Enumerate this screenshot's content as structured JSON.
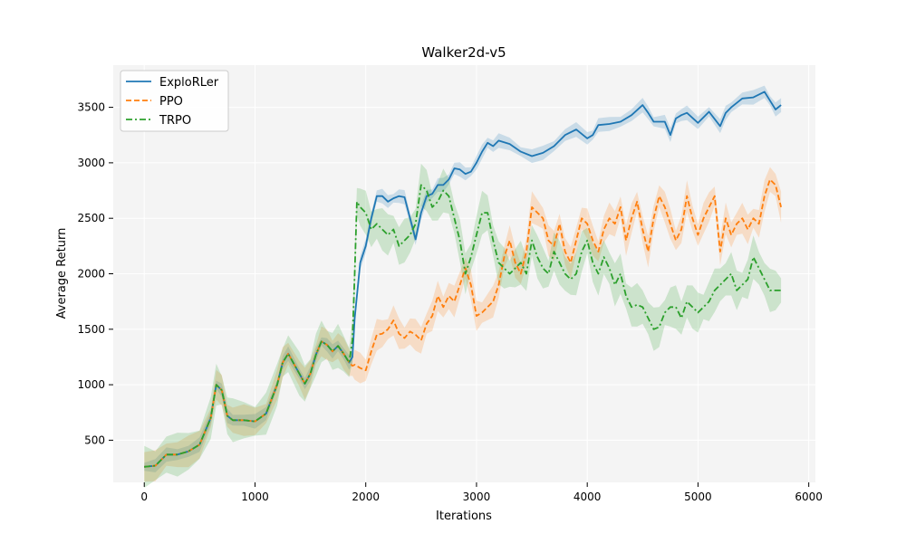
{
  "chart_data": {
    "type": "line",
    "title": "Walker2d-v5",
    "xlabel": "Iterations",
    "ylabel": "Average Return",
    "xlim": [
      -280,
      6060
    ],
    "ylim": [
      120,
      3880
    ],
    "xticks": [
      0,
      1000,
      2000,
      3000,
      4000,
      5000,
      6000
    ],
    "yticks": [
      500,
      1000,
      1500,
      2000,
      2500,
      3000,
      3500
    ],
    "grid": true,
    "legend_position": "top-left",
    "series": [
      {
        "name": "ExploRLer",
        "color": "#1f77b4",
        "style": "solid",
        "band": 60,
        "x": [
          0,
          100,
          200,
          300,
          400,
          500,
          600,
          650,
          700,
          750,
          800,
          900,
          1000,
          1100,
          1200,
          1250,
          1300,
          1400,
          1450,
          1500,
          1550,
          1600,
          1650,
          1700,
          1750,
          1800,
          1850,
          1880,
          1900,
          1950,
          2000,
          2050,
          2100,
          2150,
          2200,
          2250,
          2300,
          2350,
          2400,
          2450,
          2500,
          2550,
          2600,
          2650,
          2700,
          2750,
          2800,
          2850,
          2900,
          2950,
          3000,
          3050,
          3100,
          3150,
          3200,
          3300,
          3400,
          3500,
          3600,
          3700,
          3800,
          3900,
          4000,
          4050,
          4100,
          4200,
          4300,
          4400,
          4500,
          4550,
          4600,
          4700,
          4750,
          4800,
          4850,
          4900,
          5000,
          5100,
          5200,
          5250,
          5300,
          5400,
          5500,
          5600,
          5650,
          5700,
          5750
        ],
        "y": [
          260,
          270,
          370,
          370,
          400,
          460,
          700,
          1000,
          950,
          720,
          680,
          680,
          670,
          740,
          1000,
          1200,
          1280,
          1100,
          1010,
          1100,
          1270,
          1390,
          1360,
          1300,
          1350,
          1280,
          1200,
          1250,
          1600,
          2100,
          2250,
          2500,
          2700,
          2700,
          2650,
          2680,
          2700,
          2690,
          2500,
          2310,
          2550,
          2700,
          2720,
          2800,
          2800,
          2850,
          2950,
          2940,
          2900,
          2920,
          3000,
          3100,
          3180,
          3150,
          3200,
          3170,
          3100,
          3060,
          3090,
          3150,
          3250,
          3300,
          3220,
          3250,
          3340,
          3350,
          3370,
          3430,
          3520,
          3450,
          3370,
          3370,
          3250,
          3400,
          3430,
          3450,
          3360,
          3460,
          3330,
          3450,
          3500,
          3580,
          3590,
          3640,
          3560,
          3480,
          3520
        ]
      },
      {
        "name": "PPO",
        "color": "#ff7f0e",
        "style": "dashed",
        "band": 130,
        "x": [
          0,
          100,
          200,
          300,
          400,
          500,
          600,
          650,
          700,
          750,
          800,
          900,
          1000,
          1100,
          1200,
          1250,
          1300,
          1400,
          1450,
          1500,
          1550,
          1600,
          1650,
          1700,
          1750,
          1800,
          1850,
          1880,
          1900,
          1950,
          2000,
          2050,
          2100,
          2150,
          2200,
          2250,
          2300,
          2350,
          2400,
          2450,
          2500,
          2550,
          2600,
          2650,
          2700,
          2750,
          2800,
          2850,
          2900,
          2950,
          3000,
          3050,
          3100,
          3150,
          3200,
          3250,
          3300,
          3350,
          3400,
          3450,
          3500,
          3550,
          3600,
          3650,
          3700,
          3750,
          3800,
          3850,
          3900,
          3950,
          4000,
          4050,
          4100,
          4150,
          4200,
          4250,
          4300,
          4350,
          4400,
          4450,
          4500,
          4550,
          4600,
          4650,
          4700,
          4750,
          4800,
          4850,
          4900,
          4950,
          5000,
          5050,
          5100,
          5150,
          5200,
          5250,
          5300,
          5350,
          5400,
          5450,
          5500,
          5550,
          5600,
          5650,
          5700,
          5750
        ],
        "y": [
          260,
          270,
          370,
          370,
          400,
          460,
          700,
          1000,
          950,
          720,
          680,
          680,
          670,
          740,
          1000,
          1200,
          1280,
          1100,
          1010,
          1100,
          1270,
          1390,
          1360,
          1300,
          1350,
          1280,
          1200,
          1170,
          1180,
          1150,
          1130,
          1300,
          1450,
          1460,
          1500,
          1580,
          1460,
          1420,
          1480,
          1450,
          1400,
          1550,
          1620,
          1800,
          1700,
          1800,
          1750,
          1900,
          2050,
          1900,
          1620,
          1650,
          1700,
          1750,
          1900,
          2150,
          2300,
          2100,
          2000,
          2200,
          2600,
          2550,
          2500,
          2300,
          2250,
          2450,
          2200,
          2100,
          2300,
          2500,
          2450,
          2300,
          2200,
          2400,
          2500,
          2450,
          2600,
          2300,
          2500,
          2650,
          2400,
          2200,
          2500,
          2700,
          2600,
          2450,
          2300,
          2400,
          2700,
          2500,
          2350,
          2500,
          2600,
          2700,
          2200,
          2500,
          2350,
          2450,
          2500,
          2400,
          2500,
          2450,
          2700,
          2850,
          2800,
          2600
        ]
      },
      {
        "name": "TRPO",
        "color": "#2ca02c",
        "style": "dashdot",
        "band": 180,
        "x": [
          0,
          100,
          200,
          300,
          400,
          500,
          600,
          650,
          700,
          750,
          800,
          900,
          1000,
          1100,
          1200,
          1250,
          1300,
          1400,
          1450,
          1500,
          1550,
          1600,
          1650,
          1700,
          1750,
          1800,
          1850,
          1880,
          1900,
          1920,
          1950,
          2000,
          2050,
          2100,
          2150,
          2200,
          2250,
          2300,
          2350,
          2400,
          2450,
          2500,
          2550,
          2600,
          2650,
          2700,
          2750,
          2800,
          2850,
          2900,
          2950,
          3000,
          3050,
          3100,
          3150,
          3200,
          3250,
          3300,
          3350,
          3400,
          3450,
          3500,
          3550,
          3600,
          3650,
          3700,
          3750,
          3800,
          3850,
          3900,
          3950,
          4000,
          4050,
          4100,
          4150,
          4200,
          4250,
          4300,
          4350,
          4400,
          4450,
          4500,
          4550,
          4600,
          4650,
          4700,
          4750,
          4800,
          4850,
          4900,
          4950,
          5000,
          5050,
          5100,
          5150,
          5200,
          5250,
          5300,
          5350,
          5400,
          5450,
          5500,
          5550,
          5600,
          5650,
          5700,
          5750
        ],
        "y": [
          260,
          270,
          370,
          370,
          400,
          460,
          700,
          1000,
          950,
          720,
          680,
          680,
          670,
          740,
          1000,
          1200,
          1280,
          1100,
          1010,
          1100,
          1270,
          1390,
          1360,
          1300,
          1350,
          1280,
          1200,
          1400,
          2000,
          2650,
          2600,
          2550,
          2400,
          2450,
          2400,
          2350,
          2400,
          2250,
          2300,
          2350,
          2450,
          2800,
          2750,
          2600,
          2650,
          2750,
          2700,
          2500,
          2300,
          2000,
          2150,
          2350,
          2550,
          2550,
          2300,
          2100,
          2050,
          2000,
          2050,
          2100,
          2000,
          2300,
          2150,
          2050,
          2000,
          2200,
          2100,
          2000,
          1950,
          2000,
          2200,
          2300,
          2100,
          2000,
          2150,
          2050,
          1900,
          2000,
          1800,
          1700,
          1720,
          1700,
          1600,
          1500,
          1520,
          1650,
          1700,
          1700,
          1600,
          1750,
          1700,
          1650,
          1700,
          1750,
          1850,
          1900,
          1950,
          2000,
          1850,
          1900,
          1950,
          2150,
          2050,
          1950,
          1850,
          1850,
          1850
        ]
      }
    ]
  }
}
